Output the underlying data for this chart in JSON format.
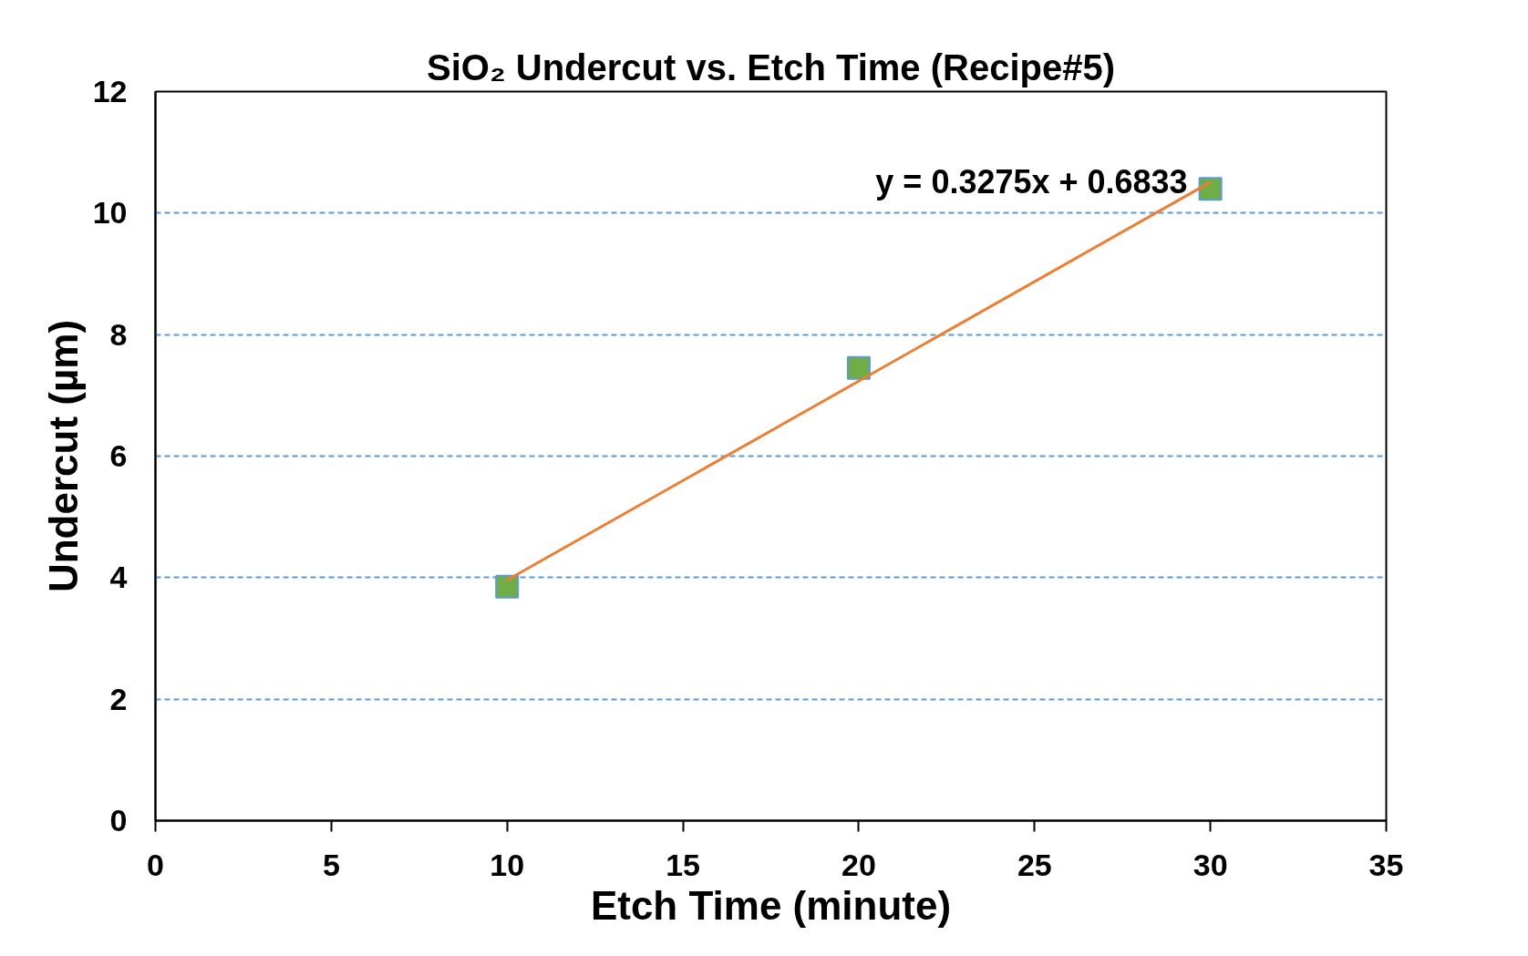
{
  "chart_data": {
    "type": "scatter",
    "title": "SiO₂ Undercut vs. Etch Time (Recipe#5)",
    "xlabel": "Etch Time (minute)",
    "ylabel": "Undercut (µm)",
    "x": [
      10,
      20,
      30
    ],
    "series": [
      {
        "color": "#70ad47",
        "values": [
          3.85,
          7.45,
          10.4
        ],
        "marker": "square"
      },
      {
        "type": "line",
        "color": "#ed7d31",
        "x": [
          10,
          30
        ],
        "values": [
          3.96,
          10.51
        ],
        "line_style": "solid",
        "marker": "none"
      }
    ],
    "annotations": [
      "y = 0.3275x + 0.6833"
    ],
    "xlim": [
      0,
      35
    ],
    "xticks": [
      0,
      5,
      10,
      15,
      20,
      25,
      30,
      35
    ],
    "ylim": [
      0,
      12
    ],
    "yticks": [
      0,
      2,
      4,
      6,
      8,
      10,
      12
    ],
    "grid": "y"
  }
}
